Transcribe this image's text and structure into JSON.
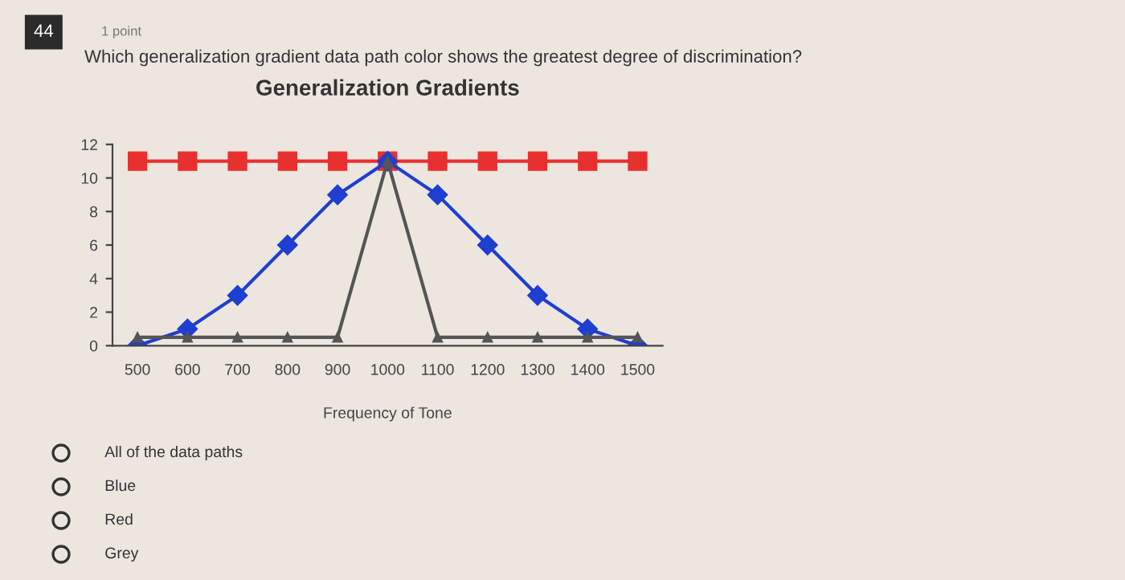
{
  "chart_data": {
    "type": "line",
    "title": "Generalization Gradients",
    "xlabel": "Frequency of Tone",
    "categories": [
      "500",
      "600",
      "700",
      "800",
      "900",
      "1000",
      "1100",
      "1200",
      "1300",
      "1400",
      "1500"
    ],
    "series": [
      {
        "color": "#e8302f",
        "marker": "square",
        "values": [
          11,
          11,
          11,
          11,
          11,
          11,
          11,
          11,
          11,
          11,
          11
        ]
      },
      {
        "color": "#1f3fd0",
        "marker": "diamond",
        "values": [
          0,
          1,
          3,
          6,
          9,
          11,
          9,
          6,
          3,
          1,
          0
        ]
      },
      {
        "color": "#555555",
        "marker": "triangle",
        "values": [
          0.5,
          0.5,
          0.5,
          0.5,
          0.5,
          11,
          0.5,
          0.5,
          0.5,
          0.5,
          0.5
        ]
      }
    ],
    "ylim": [
      0,
      12
    ],
    "yticks": [
      0,
      2,
      4,
      6,
      8,
      10,
      12
    ],
    "grid": false,
    "legend": false,
    "line_style": "solid",
    "annotations": [
      "44",
      "1 point",
      "Which generalization gradient data path color shows the greatest degree of discrimination?",
      "All of the data paths",
      "Blue",
      "Red",
      "Grey"
    ]
  }
}
